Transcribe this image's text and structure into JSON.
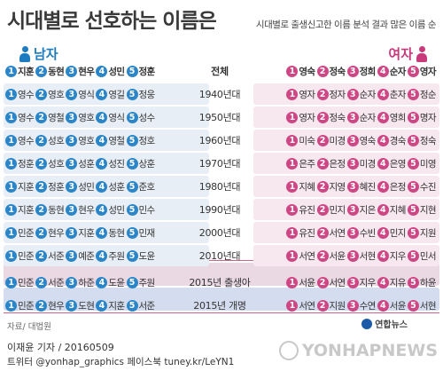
{
  "title": "시대별로 선호하는 이름은",
  "subtitle": "시대별로 출생신고한 이름 분석 결과 많은 이름 순",
  "male_label": "남자",
  "female_label": "여자",
  "header": {
    "male": [
      "지훈",
      "동현",
      "현우",
      "성민",
      "정훈"
    ],
    "label": "전체",
    "female": [
      "영숙",
      "정숙",
      "정희",
      "순자",
      "영자"
    ]
  },
  "rows": [
    {
      "male": [
        "영수",
        "영호",
        "영식",
        "영길",
        "정웅"
      ],
      "label": "1940년대",
      "female": [
        "영자",
        "정자",
        "순자",
        "춘자",
        "정순"
      ]
    },
    {
      "male": [
        "영수",
        "영철",
        "영호",
        "영식",
        "성수"
      ],
      "label": "1950년대",
      "female": [
        "영자",
        "정숙",
        "순자",
        "영희",
        "명자"
      ]
    },
    {
      "male": [
        "영수",
        "성호",
        "영호",
        "영철",
        "정호"
      ],
      "label": "1960년대",
      "female": [
        "미숙",
        "미경",
        "영숙",
        "경숙",
        "정숙"
      ]
    },
    {
      "male": [
        "정훈",
        "성호",
        "성훈",
        "성진",
        "상훈"
      ],
      "label": "1970년대",
      "female": [
        "은주",
        "은정",
        "미경",
        "은영",
        "미영"
      ]
    },
    {
      "male": [
        "지훈",
        "정훈",
        "성민",
        "성훈",
        "준호"
      ],
      "label": "1980년대",
      "female": [
        "지혜",
        "지영",
        "혜진",
        "은정",
        "수진"
      ]
    },
    {
      "male": [
        "지훈",
        "동현",
        "현우",
        "성민",
        "민수"
      ],
      "label": "1990년대",
      "female": [
        "유진",
        "민지",
        "지은",
        "지혜",
        "지현"
      ]
    },
    {
      "male": [
        "민준",
        "현우",
        "지훈",
        "동현",
        "민재"
      ],
      "label": "2000년대",
      "female": [
        "유진",
        "서연",
        "수빈",
        "민지",
        "지원"
      ]
    },
    {
      "male": [
        "민준",
        "서준",
        "예준",
        "주원",
        "도윤"
      ],
      "label": "2010년대",
      "female": [
        "서연",
        "서윤",
        "서현",
        "지우",
        "민서"
      ]
    }
  ],
  "special_rows": [
    {
      "male": [
        "민준",
        "서준",
        "하준",
        "도윤",
        "주원"
      ],
      "label": "2015년 출생아",
      "female": [
        "서윤",
        "서연",
        "지우",
        "지유",
        "하윤"
      ]
    },
    {
      "male": [
        "민준",
        "현우",
        "도현",
        "지훈",
        "서준"
      ],
      "label": "2015년 개명",
      "female": [
        "서연",
        "지원",
        "수연",
        "서윤",
        "서현"
      ]
    }
  ],
  "source": "자료/ 대법원",
  "logo_text": "연합뉴스",
  "byline": "이재윤 기자 / 20160509",
  "twitter": "트위터 @yonhap_graphics  페이스북 tuney.kr/LeYN1",
  "watermark": "YONHAPNEWS"
}
